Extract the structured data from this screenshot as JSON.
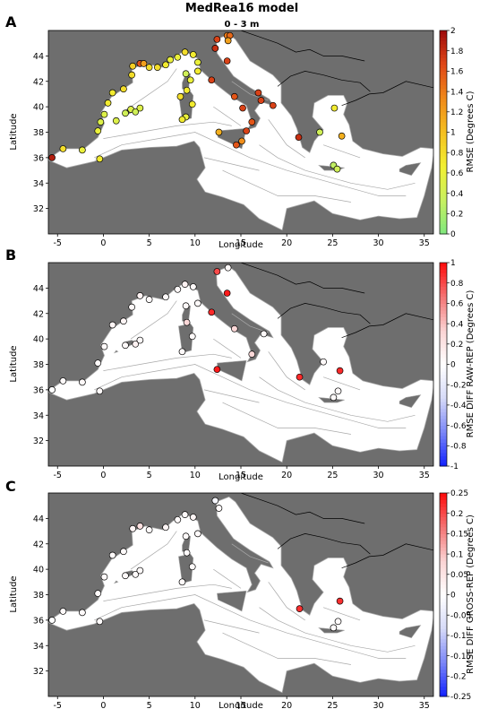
{
  "figure": {
    "title": "MedRea16 model",
    "subtitle": "0 - 3 m"
  },
  "colors": {
    "land": "#6e6e6e",
    "sea": "#ffffff",
    "bathymetry": "#a8a8a8",
    "coast_other": "#000000"
  },
  "chart_data": [
    {
      "panel_label": "A",
      "type": "scatter",
      "xlabel": "Longitude",
      "ylabel": "Latitude",
      "xlim": [
        -6,
        36
      ],
      "ylim": [
        30,
        46
      ],
      "xticks": [
        "-5",
        "0",
        "5",
        "10",
        "15",
        "20",
        "25",
        "30",
        "35"
      ],
      "yticks": [
        "32",
        "34",
        "36",
        "38",
        "40",
        "42",
        "44"
      ],
      "colorbar": {
        "label": "RMSE (Degrees C)",
        "ticks": [
          "0",
          "0.2",
          "0.4",
          "0.6",
          "0.8",
          "1",
          "1.2",
          "1.4",
          "1.6",
          "1.8",
          "2"
        ],
        "range": [
          0,
          2
        ],
        "cmap": [
          "#7fe87f",
          "#c8f060",
          "#f2f032",
          "#f5c020",
          "#f08a1a",
          "#e04818",
          "#9e0a0a"
        ]
      },
      "points": [
        {
          "lon": -5.6,
          "lat": 36.0,
          "v": 1.9
        },
        {
          "lon": -4.4,
          "lat": 36.7,
          "v": 0.8
        },
        {
          "lon": -2.3,
          "lat": 36.6,
          "v": 0.6
        },
        {
          "lon": -0.4,
          "lat": 35.9,
          "v": 0.7
        },
        {
          "lon": -0.6,
          "lat": 38.1,
          "v": 0.6
        },
        {
          "lon": -0.3,
          "lat": 38.8,
          "v": 0.5
        },
        {
          "lon": 0.1,
          "lat": 39.4,
          "v": 0.5
        },
        {
          "lon": 0.5,
          "lat": 40.3,
          "v": 0.7
        },
        {
          "lon": 1.0,
          "lat": 41.1,
          "v": 0.7
        },
        {
          "lon": 2.2,
          "lat": 41.4,
          "v": 0.8
        },
        {
          "lon": 1.4,
          "lat": 38.9,
          "v": 0.5
        },
        {
          "lon": 2.4,
          "lat": 39.5,
          "v": 0.4
        },
        {
          "lon": 3.0,
          "lat": 39.8,
          "v": 0.5
        },
        {
          "lon": 3.5,
          "lat": 39.6,
          "v": 0.4
        },
        {
          "lon": 4.0,
          "lat": 39.9,
          "v": 0.5
        },
        {
          "lon": 3.1,
          "lat": 42.5,
          "v": 0.8
        },
        {
          "lon": 3.2,
          "lat": 43.2,
          "v": 0.9
        },
        {
          "lon": 4.0,
          "lat": 43.4,
          "v": 1.6
        },
        {
          "lon": 4.4,
          "lat": 43.4,
          "v": 1.2
        },
        {
          "lon": 5.0,
          "lat": 43.1,
          "v": 0.8
        },
        {
          "lon": 5.9,
          "lat": 43.1,
          "v": 0.8
        },
        {
          "lon": 6.8,
          "lat": 43.3,
          "v": 0.7
        },
        {
          "lon": 7.3,
          "lat": 43.7,
          "v": 0.6
        },
        {
          "lon": 8.1,
          "lat": 43.9,
          "v": 0.6
        },
        {
          "lon": 8.9,
          "lat": 44.3,
          "v": 0.8
        },
        {
          "lon": 9.8,
          "lat": 44.1,
          "v": 0.7
        },
        {
          "lon": 9.0,
          "lat": 42.6,
          "v": 0.4
        },
        {
          "lon": 9.5,
          "lat": 42.1,
          "v": 0.6
        },
        {
          "lon": 9.1,
          "lat": 41.3,
          "v": 0.7
        },
        {
          "lon": 8.4,
          "lat": 40.8,
          "v": 0.8
        },
        {
          "lon": 9.7,
          "lat": 40.2,
          "v": 0.7
        },
        {
          "lon": 9.0,
          "lat": 39.2,
          "v": 0.6
        },
        {
          "lon": 8.6,
          "lat": 39.0,
          "v": 0.7
        },
        {
          "lon": 10.3,
          "lat": 43.5,
          "v": 0.6
        },
        {
          "lon": 10.3,
          "lat": 42.8,
          "v": 0.7
        },
        {
          "lon": 12.2,
          "lat": 44.6,
          "v": 1.8
        },
        {
          "lon": 12.4,
          "lat": 45.3,
          "v": 1.7
        },
        {
          "lon": 13.5,
          "lat": 45.6,
          "v": 1.4
        },
        {
          "lon": 13.8,
          "lat": 45.6,
          "v": 1.5
        },
        {
          "lon": 13.6,
          "lat": 45.2,
          "v": 1.2
        },
        {
          "lon": 11.8,
          "lat": 42.1,
          "v": 1.7
        },
        {
          "lon": 14.3,
          "lat": 40.8,
          "v": 1.6
        },
        {
          "lon": 15.2,
          "lat": 39.9,
          "v": 1.7
        },
        {
          "lon": 16.2,
          "lat": 38.8,
          "v": 1.6
        },
        {
          "lon": 15.6,
          "lat": 38.1,
          "v": 1.7
        },
        {
          "lon": 12.6,
          "lat": 38.0,
          "v": 1.1
        },
        {
          "lon": 14.5,
          "lat": 37.0,
          "v": 1.6
        },
        {
          "lon": 15.1,
          "lat": 37.3,
          "v": 1.3
        },
        {
          "lon": 17.2,
          "lat": 40.5,
          "v": 1.7
        },
        {
          "lon": 16.9,
          "lat": 41.1,
          "v": 1.7
        },
        {
          "lon": 18.5,
          "lat": 40.1,
          "v": 1.7
        },
        {
          "lon": 13.5,
          "lat": 43.6,
          "v": 1.7
        },
        {
          "lon": 21.3,
          "lat": 37.6,
          "v": 1.8
        },
        {
          "lon": 23.6,
          "lat": 38.0,
          "v": 0.4
        },
        {
          "lon": 25.2,
          "lat": 39.9,
          "v": 0.7
        },
        {
          "lon": 25.1,
          "lat": 35.4,
          "v": 0.3
        },
        {
          "lon": 25.5,
          "lat": 35.1,
          "v": 0.4
        },
        {
          "lon": 26.0,
          "lat": 37.7,
          "v": 1.1
        }
      ]
    },
    {
      "panel_label": "B",
      "type": "scatter",
      "xlabel": "Longitude",
      "ylabel": "Latitude",
      "xlim": [
        -6,
        36
      ],
      "ylim": [
        30,
        46
      ],
      "xticks": [
        "-5",
        "0",
        "5",
        "10",
        "15",
        "20",
        "25",
        "30",
        "35"
      ],
      "yticks": [
        "32",
        "34",
        "36",
        "38",
        "40",
        "42",
        "44"
      ],
      "colorbar": {
        "label": "RMSE DIFF RAW-REP (Degrees C)",
        "ticks": [
          "-1",
          "-0.8",
          "-0.6",
          "-0.4",
          "-0.2",
          "0",
          "0.2",
          "0.4",
          "0.6",
          "0.8",
          "1"
        ],
        "range": [
          -1,
          1
        ],
        "cmap": [
          "#1020ff",
          "#7a86f8",
          "#d6daf8",
          "#ffffff",
          "#fbd4d4",
          "#f47474",
          "#ff0a0a"
        ]
      },
      "points": [
        {
          "lon": -5.6,
          "lat": 36.0,
          "v": 0.0
        },
        {
          "lon": -4.4,
          "lat": 36.7,
          "v": 0.05
        },
        {
          "lon": -2.3,
          "lat": 36.6,
          "v": 0.05
        },
        {
          "lon": -0.4,
          "lat": 35.9,
          "v": 0.05
        },
        {
          "lon": -0.6,
          "lat": 38.1,
          "v": 0.05
        },
        {
          "lon": 0.1,
          "lat": 39.4,
          "v": 0.05
        },
        {
          "lon": 1.0,
          "lat": 41.1,
          "v": 0.08
        },
        {
          "lon": 2.2,
          "lat": 41.4,
          "v": 0.08
        },
        {
          "lon": 2.4,
          "lat": 39.5,
          "v": 0.05
        },
        {
          "lon": 3.5,
          "lat": 39.6,
          "v": 0.1
        },
        {
          "lon": 4.0,
          "lat": 39.9,
          "v": 0.05
        },
        {
          "lon": 3.1,
          "lat": 42.5,
          "v": 0.05
        },
        {
          "lon": 4.0,
          "lat": 43.4,
          "v": 0.1
        },
        {
          "lon": 5.0,
          "lat": 43.1,
          "v": 0.05
        },
        {
          "lon": 6.8,
          "lat": 43.3,
          "v": 0.05
        },
        {
          "lon": 8.1,
          "lat": 43.9,
          "v": 0.05
        },
        {
          "lon": 8.9,
          "lat": 44.3,
          "v": 0.1
        },
        {
          "lon": 9.8,
          "lat": 44.1,
          "v": 0.05
        },
        {
          "lon": 9.0,
          "lat": 42.6,
          "v": 0.05
        },
        {
          "lon": 9.1,
          "lat": 41.3,
          "v": 0.3
        },
        {
          "lon": 9.7,
          "lat": 40.2,
          "v": 0.05
        },
        {
          "lon": 8.6,
          "lat": 39.0,
          "v": 0.05
        },
        {
          "lon": 10.3,
          "lat": 42.8,
          "v": 0.05
        },
        {
          "lon": 12.4,
          "lat": 45.3,
          "v": 0.8
        },
        {
          "lon": 13.6,
          "lat": 45.6,
          "v": 0.05
        },
        {
          "lon": 11.8,
          "lat": 42.1,
          "v": 0.9
        },
        {
          "lon": 14.3,
          "lat": 40.8,
          "v": 0.3
        },
        {
          "lon": 13.5,
          "lat": 43.6,
          "v": 0.95
        },
        {
          "lon": 12.4,
          "lat": 37.6,
          "v": 0.95
        },
        {
          "lon": 16.2,
          "lat": 38.8,
          "v": 0.3
        },
        {
          "lon": 17.5,
          "lat": 40.4,
          "v": 0.05
        },
        {
          "lon": 21.4,
          "lat": 37.0,
          "v": 0.9
        },
        {
          "lon": 25.8,
          "lat": 37.5,
          "v": 0.9
        },
        {
          "lon": 24.0,
          "lat": 38.2,
          "v": 0.05
        },
        {
          "lon": 25.1,
          "lat": 35.4,
          "v": 0.05
        },
        {
          "lon": 25.6,
          "lat": 35.9,
          "v": 0.05
        }
      ]
    },
    {
      "panel_label": "C",
      "type": "scatter",
      "xlabel": "Longitude",
      "ylabel": "Latitude",
      "xlim": [
        -6,
        36
      ],
      "ylim": [
        30,
        46
      ],
      "xticks": [
        "-5",
        "0",
        "5",
        "10",
        "15",
        "20",
        "25",
        "30",
        "35"
      ],
      "yticks": [
        "32",
        "34",
        "36",
        "38",
        "40",
        "42",
        "44"
      ],
      "colorbar": {
        "label": "RMSE DIFF GROSS-REP (Degrees C)",
        "ticks": [
          "-0.25",
          "-0.2",
          "-0.15",
          "-0.1",
          "-0.05",
          "0",
          "0.05",
          "0.1",
          "0.15",
          "0.2",
          "0.25"
        ],
        "range": [
          -0.25,
          0.25
        ],
        "cmap": [
          "#1020ff",
          "#7a86f8",
          "#d6daf8",
          "#ffffff",
          "#fbd4d4",
          "#f47474",
          "#ff0a0a"
        ]
      },
      "points": [
        {
          "lon": -5.6,
          "lat": 36.0,
          "v": 0.0
        },
        {
          "lon": -4.4,
          "lat": 36.7,
          "v": 0.01
        },
        {
          "lon": -2.3,
          "lat": 36.6,
          "v": 0.01
        },
        {
          "lon": -0.4,
          "lat": 35.9,
          "v": 0.01
        },
        {
          "lon": -0.6,
          "lat": 38.1,
          "v": 0.01
        },
        {
          "lon": 0.1,
          "lat": 39.4,
          "v": 0.01
        },
        {
          "lon": 1.0,
          "lat": 41.1,
          "v": 0.01
        },
        {
          "lon": 2.2,
          "lat": 41.4,
          "v": 0.01
        },
        {
          "lon": 2.4,
          "lat": 39.5,
          "v": 0.01
        },
        {
          "lon": 3.5,
          "lat": 39.6,
          "v": 0.01
        },
        {
          "lon": 4.0,
          "lat": 39.9,
          "v": 0.01
        },
        {
          "lon": 3.2,
          "lat": 43.2,
          "v": 0.02
        },
        {
          "lon": 4.0,
          "lat": 43.4,
          "v": 0.06
        },
        {
          "lon": 5.0,
          "lat": 43.1,
          "v": 0.01
        },
        {
          "lon": 6.8,
          "lat": 43.3,
          "v": 0.02
        },
        {
          "lon": 8.1,
          "lat": 43.9,
          "v": 0.01
        },
        {
          "lon": 8.9,
          "lat": 44.3,
          "v": 0.01
        },
        {
          "lon": 9.8,
          "lat": 44.1,
          "v": 0.02
        },
        {
          "lon": 9.0,
          "lat": 42.6,
          "v": 0.01
        },
        {
          "lon": 9.1,
          "lat": 41.3,
          "v": 0.01
        },
        {
          "lon": 9.7,
          "lat": 40.2,
          "v": 0.01
        },
        {
          "lon": 8.6,
          "lat": 39.0,
          "v": 0.01
        },
        {
          "lon": 10.3,
          "lat": 42.8,
          "v": 0.01
        },
        {
          "lon": 12.2,
          "lat": 45.4,
          "v": -0.02
        },
        {
          "lon": 12.6,
          "lat": 44.8,
          "v": 0.01
        },
        {
          "lon": 21.4,
          "lat": 36.9,
          "v": 0.22
        },
        {
          "lon": 25.8,
          "lat": 37.5,
          "v": 0.22
        },
        {
          "lon": 25.1,
          "lat": 35.4,
          "v": 0.01
        },
        {
          "lon": 25.6,
          "lat": 35.9,
          "v": 0.01
        }
      ]
    }
  ]
}
